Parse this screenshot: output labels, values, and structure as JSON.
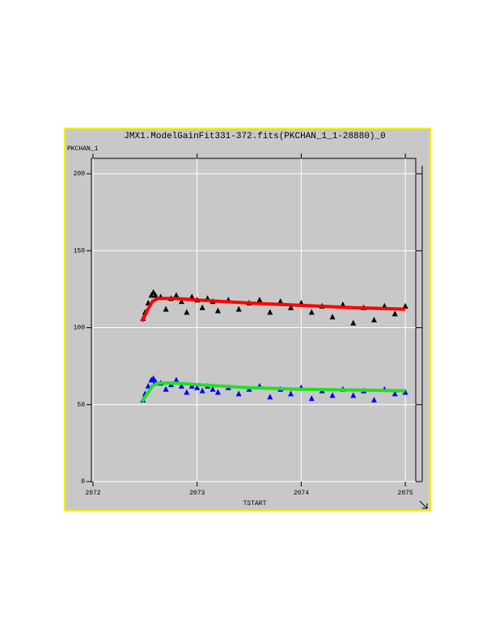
{
  "chart_data": {
    "type": "scatter",
    "title": "JMX1.ModelGainFit331-372.fits(PKCHAN_1_1-28880)_0",
    "y_label": "PKCHAN_1",
    "x_label": "TSTART",
    "xlim": [
      2072,
      2075.1
    ],
    "xticks": [
      2072,
      2073,
      2074,
      2075
    ],
    "ylim": [
      0,
      210
    ],
    "yticks": [
      0,
      50,
      100,
      150,
      200
    ],
    "grid": true,
    "series": [
      {
        "color": "#000000",
        "style": "markers",
        "x": [
          2072.48,
          2072.5,
          2072.53,
          2072.56,
          2072.58,
          2072.6,
          2072.65,
          2072.7,
          2072.75,
          2072.8,
          2072.85,
          2072.9,
          2072.95,
          2073.0,
          2073.05,
          2073.1,
          2073.15,
          2073.2,
          2073.3,
          2073.4,
          2073.5,
          2073.6,
          2073.7,
          2073.8,
          2073.9,
          2074.0,
          2074.1,
          2074.2,
          2074.3,
          2074.4,
          2074.5,
          2074.6,
          2074.7,
          2074.8,
          2074.9,
          2075.0
        ],
        "values": [
          106,
          110,
          116,
          121,
          123,
          121,
          120,
          112,
          119,
          121,
          117,
          110,
          120,
          118,
          113,
          119,
          117,
          111,
          118,
          112,
          116,
          118,
          110,
          117,
          113,
          116,
          110,
          114,
          107,
          115,
          103,
          113,
          105,
          114,
          109,
          114
        ]
      },
      {
        "color": "#0000ff",
        "style": "markers",
        "x": [
          2072.48,
          2072.5,
          2072.53,
          2072.56,
          2072.58,
          2072.6,
          2072.65,
          2072.7,
          2072.75,
          2072.8,
          2072.85,
          2072.9,
          2072.95,
          2073.0,
          2073.05,
          2073.1,
          2073.15,
          2073.2,
          2073.3,
          2073.4,
          2073.5,
          2073.6,
          2073.7,
          2073.8,
          2073.9,
          2074.0,
          2074.1,
          2074.2,
          2074.3,
          2074.4,
          2074.5,
          2074.6,
          2074.7,
          2074.8,
          2074.9,
          2075.0
        ],
        "values": [
          53,
          57,
          62,
          66,
          67,
          65,
          64,
          60,
          63,
          66,
          62,
          58,
          62,
          61,
          59,
          62,
          60,
          58,
          61,
          57,
          60,
          62,
          55,
          60,
          57,
          61,
          54,
          59,
          56,
          60,
          56,
          59,
          53,
          60,
          57,
          58
        ]
      },
      {
        "color": "#ff0000",
        "style": "line",
        "x": [
          2072.47,
          2072.52,
          2072.57,
          2072.62,
          2072.8,
          2073,
          2073.5,
          2074,
          2074.5,
          2075
        ],
        "values": [
          104,
          111,
          117,
          119,
          119,
          118,
          116,
          114.5,
          113,
          112
        ]
      },
      {
        "color": "#22e022",
        "style": "line",
        "x": [
          2072.47,
          2072.52,
          2072.57,
          2072.62,
          2072.8,
          2073,
          2073.5,
          2074,
          2074.5,
          2075
        ],
        "values": [
          52,
          57,
          62,
          64,
          64,
          63,
          61,
          60,
          59.5,
          59
        ]
      }
    ]
  }
}
